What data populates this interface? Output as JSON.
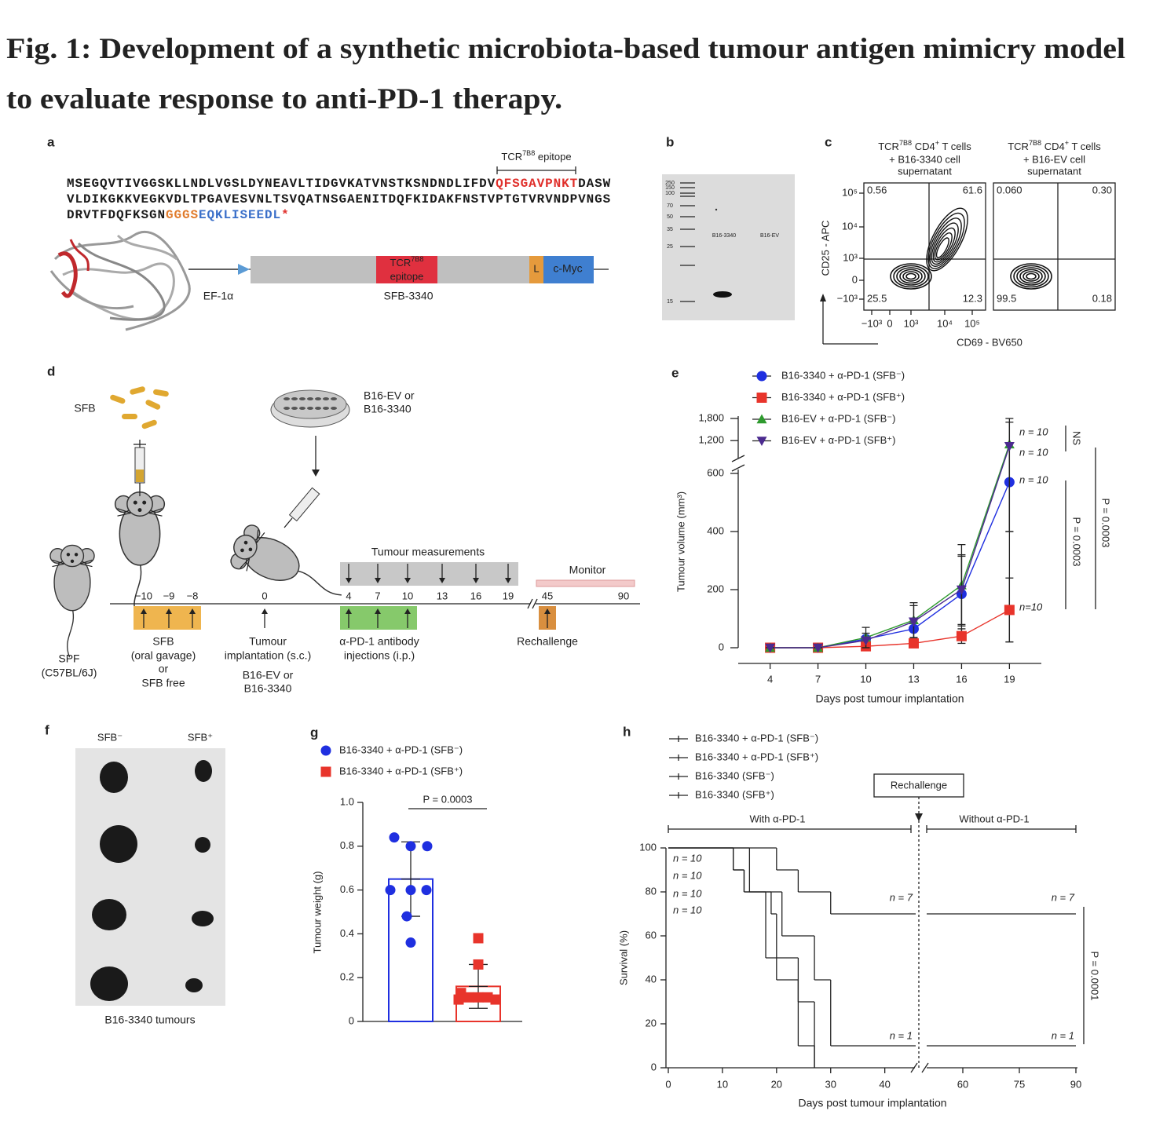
{
  "title": [
    "Fig. 1: Development of a synthetic microbiota-based tumour antigen mimicry model",
    "to evaluate response to anti-PD-1 therapy."
  ],
  "panel_a": {
    "label": "a",
    "epitope_caption": [
      {
        "text": "TCR"
      },
      {
        "text": "7B8",
        "sup": true
      },
      {
        "text": " epitope"
      }
    ],
    "sequence": [
      [
        {
          "text": "MSEGQVTIVGGSKLLNDLVGSLDYNEAVLTIDGVKATVNSTKSNDNDLIFDV",
          "color": "#1a1a1a"
        },
        {
          "text": "QFSGAVPNKT",
          "color": "#e0302c"
        },
        {
          "text": "DASW",
          "color": "#1a1a1a"
        }
      ],
      [
        {
          "text": "VLDIKGKKVEGKVDLTPGAVESVNLTSVQATNSGAENITDQFKIDAKFNSTVPTGTVRVNDPVNGS",
          "color": "#1a1a1a"
        }
      ],
      [
        {
          "text": "DRVTFDQFKSGN",
          "color": "#1a1a1a"
        },
        {
          "text": "GGGS",
          "color": "#e07b2c"
        },
        {
          "text": "EQKLISEEDL",
          "color": "#3a6fc9"
        },
        {
          "text": "*",
          "color": "#e0302c"
        }
      ]
    ],
    "promoter": "EF-1α",
    "epitope_box": [
      {
        "text": "TCR"
      },
      {
        "text": "7B8",
        "sup": true
      }
    ],
    "epitope_box_line2": "epitope",
    "linker": "L",
    "tag": "c-Myc",
    "construct": "SFB-3340"
  },
  "panel_b": {
    "label": "b",
    "ladder": [
      "250",
      "150",
      "100",
      "70",
      "50",
      "35",
      "25",
      "15"
    ],
    "lanes": [
      "B16-3340",
      "B16-EV"
    ]
  },
  "panel_c": {
    "label": "c",
    "plots": [
      {
        "header": [
          {
            "text": "TCR"
          },
          {
            "text": "7B8",
            "sup": true
          },
          {
            "text": " CD4"
          },
          {
            "text": "+",
            "sup": true
          },
          {
            "text": " T cells"
          }
        ],
        "header2": "+ B16-3340 cell",
        "header3": "supernatant",
        "quadrants": [
          "0.56",
          "61.6",
          "25.5",
          "12.3"
        ]
      },
      {
        "header": [
          {
            "text": "TCR"
          },
          {
            "text": "7B8",
            "sup": true
          },
          {
            "text": " CD4"
          },
          {
            "text": "+",
            "sup": true
          },
          {
            "text": " T cells"
          }
        ],
        "header2": "+ B16-EV cell",
        "header3": "supernatant",
        "quadrants": [
          "0.060",
          "0.30",
          "99.5",
          "0.18"
        ]
      }
    ],
    "yticks": [
      "10⁵",
      "10⁴",
      "10³",
      "0",
      "−10³"
    ],
    "xticks": [
      "−10³",
      "0",
      "10³",
      "10⁴",
      "10⁵"
    ],
    "ylabel": "CD25 - APC",
    "xlabel": "CD69 - BV650"
  },
  "panel_d": {
    "label": "d",
    "sfb": "SFB",
    "cells": [
      "B16-EV or",
      "B16-3340"
    ],
    "measurements": "Tumour measurements",
    "monitor": "Monitor",
    "days": [
      "−10",
      "−9",
      "−8",
      "0",
      "4",
      "7",
      "10",
      "13",
      "16",
      "19",
      "45",
      "90"
    ],
    "spf": [
      "SPF",
      "(C57BL/6J)"
    ],
    "sfb_caption": [
      "SFB",
      "(oral gavage)",
      "or",
      "SFB free"
    ],
    "implant": [
      "Tumour",
      "implantation (s.c.)"
    ],
    "implant_cells": [
      "B16-EV or",
      "B16-3340"
    ],
    "antibody": [
      "α-PD-1 antibody",
      "injections (i.p.)"
    ],
    "rechallenge": "Rechallenge"
  },
  "panel_f": {
    "label": "f",
    "columns": [
      "SFB⁻",
      "SFB⁺"
    ],
    "caption": "B16-3340 tumours"
  },
  "chart_data": [
    {
      "type": "line",
      "label": "e",
      "x": [
        4,
        7,
        10,
        13,
        16,
        19
      ],
      "xlim": [
        2,
        21
      ],
      "xticks": [
        4,
        7,
        10,
        13,
        16,
        19
      ],
      "ylim": [
        0,
        1800
      ],
      "ybreak": [
        600,
        800
      ],
      "yticks": [
        0,
        200,
        400,
        600,
        {
          "value": 1200,
          "label": "1,200"
        },
        {
          "value": 1800,
          "label": "1,800"
        }
      ],
      "xlabel": "Days post tumour implantation",
      "ylabel": "Tumour volume (mm³)",
      "series": [
        {
          "name": "B16-3340 + α-PD-1 (SFB⁻)",
          "color": "#1f2fe0",
          "marker": "circle",
          "values": [
            0,
            0,
            30,
            65,
            185,
            570
          ],
          "errors": [
            0,
            0,
            10,
            30,
            130,
            550
          ],
          "n_label": "n = 10"
        },
        {
          "name": "B16-3340 + α-PD-1 (SFB⁺)",
          "color": "#e8342b",
          "marker": "square",
          "values": [
            0,
            0,
            5,
            15,
            40,
            130
          ],
          "errors": [
            0,
            0,
            5,
            10,
            25,
            110
          ],
          "n_label": "n=10"
        },
        {
          "name": "B16-EV + α-PD-1 (SFB⁻)",
          "color": "#2e9a2e",
          "marker": "triangle-up",
          "values": [
            0,
            0,
            35,
            95,
            215,
            1100
          ],
          "errors": [
            0,
            0,
            35,
            60,
            140,
            700
          ],
          "n_label": "n = 10"
        },
        {
          "name": "B16-EV + α-PD-1 (SFB⁺)",
          "color": "#4b2a8f",
          "marker": "triangle-down",
          "values": [
            0,
            0,
            25,
            90,
            200,
            1050
          ],
          "errors": [
            0,
            0,
            25,
            55,
            120,
            650
          ],
          "n_label": "n = 10"
        }
      ],
      "stats": [
        "NS",
        "P = 0.0003",
        "P = 0.0003"
      ]
    },
    {
      "type": "bar",
      "label": "g",
      "ylim": [
        0,
        1
      ],
      "yticks": [
        0,
        0.2,
        0.4,
        0.6,
        0.8,
        {
          "value": 1,
          "label": "1.0"
        }
      ],
      "ylabel": "Tumour weight (g)",
      "series": [
        {
          "name": "B16-3340 + α-PD-1 (SFB⁻)",
          "color": "#1f2fe0",
          "marker": "circle",
          "values": [
            0.65
          ],
          "errors": [
            0.17
          ],
          "points": [
            0.84,
            0.8,
            0.8,
            0.6,
            0.6,
            0.6,
            0.48,
            0.36
          ]
        },
        {
          "name": "B16-3340 + α-PD-1 (SFB⁺)",
          "color": "#e8342b",
          "marker": "square",
          "values": [
            0.16
          ],
          "errors": [
            0.1
          ],
          "points": [
            0.38,
            0.26,
            0.13,
            0.11,
            0.11,
            0.11,
            0.1,
            0.1
          ]
        }
      ],
      "annotation": "P = 0.0003"
    },
    {
      "type": "step",
      "label": "h",
      "xlim": [
        0,
        90
      ],
      "xbreak": [
        46,
        50
      ],
      "xticks": [
        0,
        10,
        20,
        30,
        40,
        60,
        75,
        90
      ],
      "ylim": [
        0,
        100
      ],
      "yticks": [
        0,
        20,
        40,
        60,
        80,
        100
      ],
      "xlabel": "Days post tumour implantation",
      "ylabel": "Survival (%)",
      "series": [
        {
          "name": "B16-3340 + α-PD-1 (SFB⁻)",
          "color": "#4a4ad8",
          "x": [
            0,
            15,
            21,
            27,
            30,
            90
          ],
          "values": [
            100,
            80,
            60,
            40,
            10,
            10
          ],
          "n_label": "n = 10"
        },
        {
          "name": "B16-3340 + α-PD-1 (SFB⁺)",
          "color": "#d9534f",
          "x": [
            0,
            20,
            24,
            30,
            90
          ],
          "values": [
            100,
            90,
            80,
            70,
            70
          ],
          "n_label": "n = 10"
        },
        {
          "name": "B16-3340 (SFB⁻)",
          "color": "#333333",
          "x": [
            0,
            12,
            14,
            19,
            20,
            24,
            27
          ],
          "values": [
            100,
            90,
            80,
            70,
            40,
            10,
            0
          ],
          "n_label": "n = 10"
        },
        {
          "name": "B16-3340 (SFB⁺)",
          "color": "#d63ac8",
          "x": [
            0,
            12,
            14,
            18,
            24,
            27
          ],
          "values": [
            100,
            90,
            80,
            50,
            30,
            0
          ],
          "n_label": "n = 10"
        }
      ],
      "annotations": {
        "with": "With α-PD-1",
        "without": "Without α-PD-1",
        "rechallenge": "Rechallenge",
        "p": "P = 0.0001",
        "end_labels": [
          "n = 7",
          "n = 7",
          "n = 1",
          "n = 1"
        ]
      }
    }
  ]
}
